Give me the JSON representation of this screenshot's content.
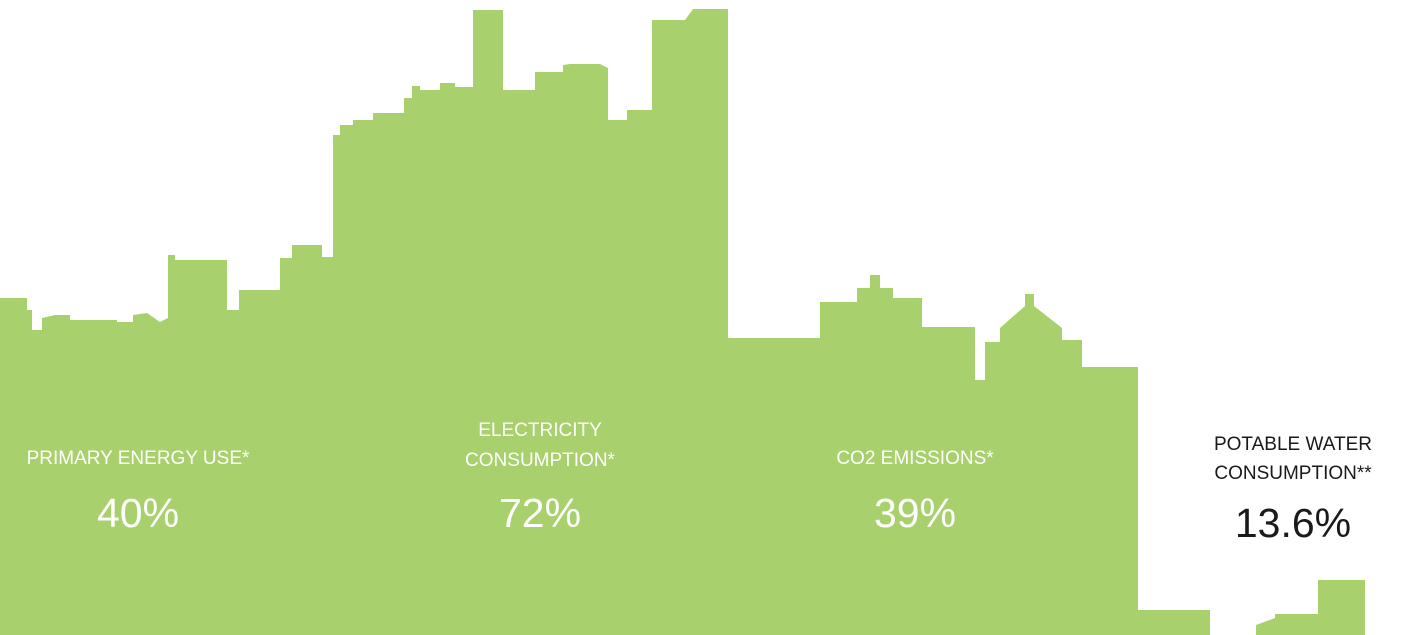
{
  "stats": [
    {
      "label": [
        "PRIMARY ENERGY USE*"
      ],
      "value": "40%"
    },
    {
      "label": [
        "ELECTRICITY",
        "CONSUMPTION*"
      ],
      "value": "72%"
    },
    {
      "label": [
        "CO2 EMISSIONS*"
      ],
      "value": "39%"
    },
    {
      "label": [
        "POTABLE WATER",
        "CONSUMPTION**"
      ],
      "value": "13.6%"
    }
  ]
}
